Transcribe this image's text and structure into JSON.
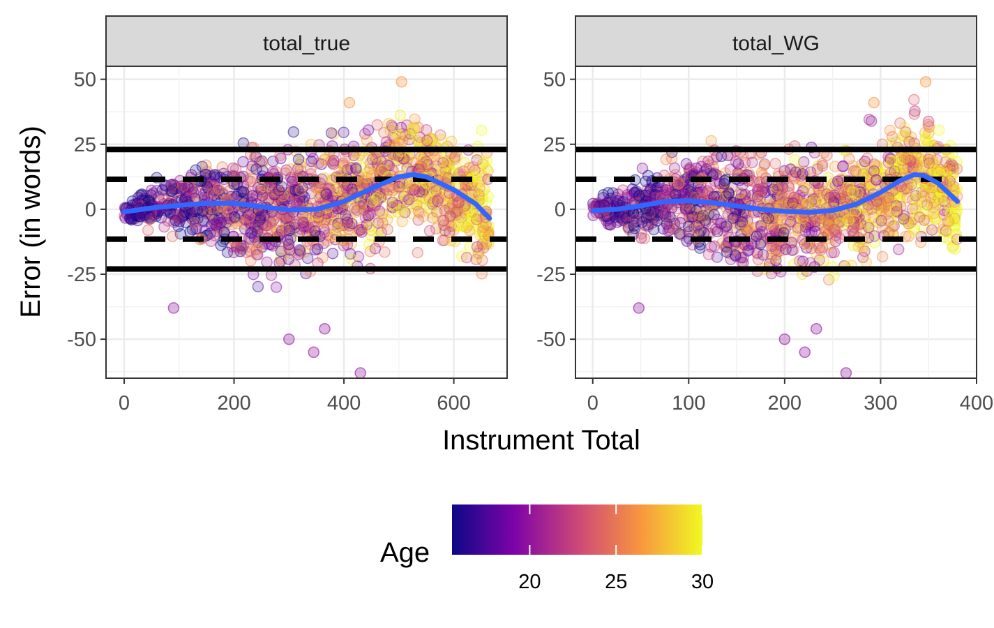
{
  "chart_data": {
    "type": "scatter",
    "ylabel": "Error (in words)",
    "xlabel": "Instrument Total",
    "y_ticks": [
      50,
      25,
      0,
      -25,
      -50
    ],
    "ylim": [
      -65,
      55
    ],
    "grid": true,
    "legend": {
      "title": "Age",
      "type": "colorbar",
      "placement": "bottom",
      "ticks": [
        20,
        25,
        30
      ],
      "range": [
        15.5,
        30
      ],
      "palette": [
        "#0d0887",
        "#7e03a8",
        "#cc4778",
        "#f89540",
        "#f0f921"
      ]
    },
    "reference_lines": [
      {
        "y": 23,
        "style": "solid"
      },
      {
        "y": -23,
        "style": "solid"
      },
      {
        "y": 11.5,
        "style": "dashed"
      },
      {
        "y": -11.5,
        "style": "dashed"
      }
    ],
    "smooth_color": "#3366ff",
    "panels": [
      {
        "strip": "total_true",
        "x_ticks": [
          0,
          200,
          400,
          600
        ],
        "xlim": [
          -33,
          697
        ],
        "smooth": {
          "x": [
            0,
            50,
            100,
            150,
            200,
            250,
            300,
            350,
            400,
            450,
            500,
            525,
            550,
            600,
            640,
            665
          ],
          "y": [
            -1,
            0.5,
            1.5,
            2.3,
            2.3,
            1,
            -0.3,
            0,
            3,
            8,
            12.5,
            13.3,
            12.5,
            7.5,
            2,
            -3.5
          ]
        },
        "notable_points": [
          {
            "x": 430,
            "y": -63
          },
          {
            "x": 345,
            "y": -55
          },
          {
            "x": 300,
            "y": -50
          },
          {
            "x": 365,
            "y": -46
          },
          {
            "x": 90,
            "y": -38
          },
          {
            "x": 505,
            "y": 49
          },
          {
            "x": 410,
            "y": 41
          }
        ]
      },
      {
        "strip": "total_WG",
        "x_ticks": [
          0,
          100,
          200,
          300,
          400
        ],
        "xlim": [
          -18,
          400
        ],
        "smooth": {
          "x": [
            0,
            25,
            50,
            75,
            100,
            125,
            150,
            175,
            200,
            225,
            250,
            275,
            300,
            320,
            335,
            345,
            360,
            380
          ],
          "y": [
            -0.5,
            0,
            1.3,
            3,
            3.3,
            2.5,
            1.3,
            0,
            -0.8,
            -1.2,
            -0.5,
            2,
            6.5,
            11,
            13.3,
            13,
            10,
            3
          ]
        },
        "notable_points": [
          {
            "x": 264,
            "y": -63
          },
          {
            "x": 221,
            "y": -55
          },
          {
            "x": 200,
            "y": -50
          },
          {
            "x": 233,
            "y": -46
          },
          {
            "x": 48,
            "y": -38
          },
          {
            "x": 347,
            "y": 49
          },
          {
            "x": 293,
            "y": 41
          }
        ]
      }
    ]
  }
}
